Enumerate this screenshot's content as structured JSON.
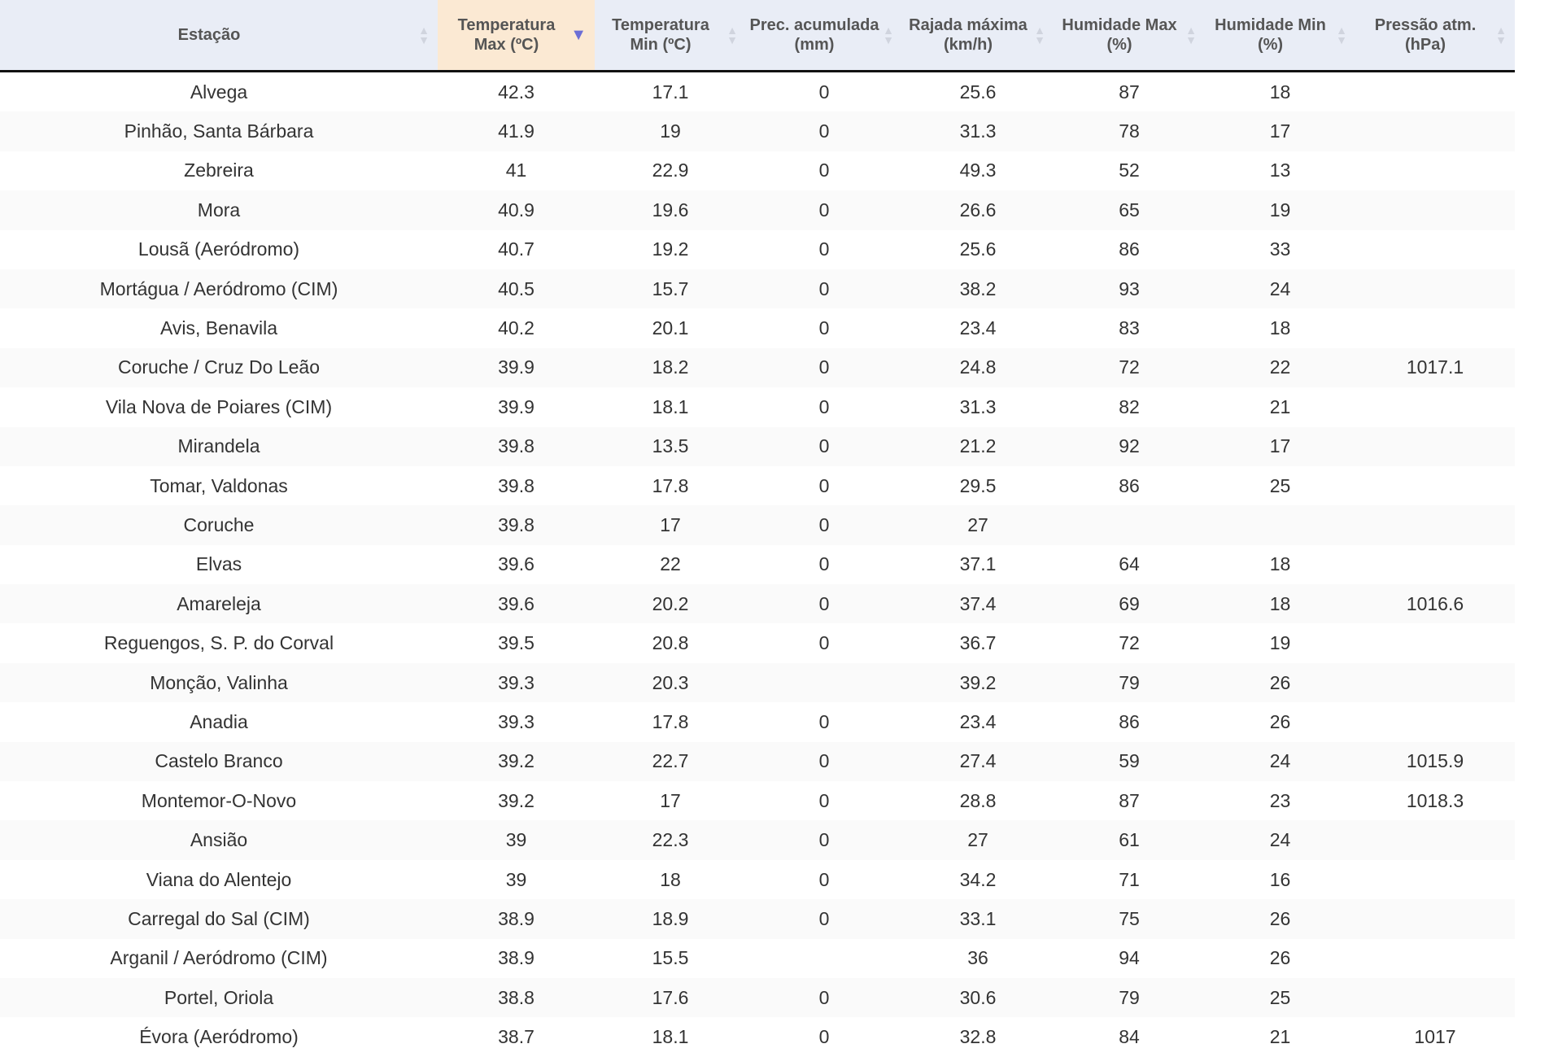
{
  "colors": {
    "header_bg": "#e9edf6",
    "sorted_header_bg": "#fbe9d3",
    "sort_active": "#6b6ed6"
  },
  "columns": [
    {
      "label": "Estação",
      "sorted": false
    },
    {
      "label": "Temperatura Max (ºC)",
      "sorted": true,
      "sort_direction": "descending"
    },
    {
      "label": "Temperatura Min (ºC)",
      "sorted": false
    },
    {
      "label": "Prec. acumulada (mm)",
      "sorted": false
    },
    {
      "label": "Rajada máxima (km/h)",
      "sorted": false
    },
    {
      "label": "Humidade Max (%)",
      "sorted": false
    },
    {
      "label": "Humidade Min (%)",
      "sorted": false
    },
    {
      "label": "Pressão atm. (hPa)",
      "sorted": false
    }
  ],
  "rows": [
    [
      "Alvega",
      "42.3",
      "17.1",
      "0",
      "25.6",
      "87",
      "18",
      ""
    ],
    [
      "Pinhão, Santa Bárbara",
      "41.9",
      "19",
      "0",
      "31.3",
      "78",
      "17",
      ""
    ],
    [
      "Zebreira",
      "41",
      "22.9",
      "0",
      "49.3",
      "52",
      "13",
      ""
    ],
    [
      "Mora",
      "40.9",
      "19.6",
      "0",
      "26.6",
      "65",
      "19",
      ""
    ],
    [
      "Lousã (Aeródromo)",
      "40.7",
      "19.2",
      "0",
      "25.6",
      "86",
      "33",
      ""
    ],
    [
      "Mortágua / Aeródromo (CIM)",
      "40.5",
      "15.7",
      "0",
      "38.2",
      "93",
      "24",
      ""
    ],
    [
      "Avis, Benavila",
      "40.2",
      "20.1",
      "0",
      "23.4",
      "83",
      "18",
      ""
    ],
    [
      "Coruche / Cruz Do Leão",
      "39.9",
      "18.2",
      "0",
      "24.8",
      "72",
      "22",
      "1017.1"
    ],
    [
      "Vila Nova de Poiares (CIM)",
      "39.9",
      "18.1",
      "0",
      "31.3",
      "82",
      "21",
      ""
    ],
    [
      "Mirandela",
      "39.8",
      "13.5",
      "0",
      "21.2",
      "92",
      "17",
      ""
    ],
    [
      "Tomar, Valdonas",
      "39.8",
      "17.8",
      "0",
      "29.5",
      "86",
      "25",
      ""
    ],
    [
      "Coruche",
      "39.8",
      "17",
      "0",
      "27",
      "",
      "",
      ""
    ],
    [
      "Elvas",
      "39.6",
      "22",
      "0",
      "37.1",
      "64",
      "18",
      ""
    ],
    [
      "Amareleja",
      "39.6",
      "20.2",
      "0",
      "37.4",
      "69",
      "18",
      "1016.6"
    ],
    [
      "Reguengos, S. P. do Corval",
      "39.5",
      "20.8",
      "0",
      "36.7",
      "72",
      "19",
      ""
    ],
    [
      "Monção, Valinha",
      "39.3",
      "20.3",
      "",
      "39.2",
      "79",
      "26",
      ""
    ],
    [
      "Anadia",
      "39.3",
      "17.8",
      "0",
      "23.4",
      "86",
      "26",
      ""
    ],
    [
      "Castelo Branco",
      "39.2",
      "22.7",
      "0",
      "27.4",
      "59",
      "24",
      "1015.9"
    ],
    [
      "Montemor-O-Novo",
      "39.2",
      "17",
      "0",
      "28.8",
      "87",
      "23",
      "1018.3"
    ],
    [
      "Ansião",
      "39",
      "22.3",
      "0",
      "27",
      "61",
      "24",
      ""
    ],
    [
      "Viana do Alentejo",
      "39",
      "18",
      "0",
      "34.2",
      "71",
      "16",
      ""
    ],
    [
      "Carregal do Sal (CIM)",
      "38.9",
      "18.9",
      "0",
      "33.1",
      "75",
      "26",
      ""
    ],
    [
      "Arganil / Aeródromo (CIM)",
      "38.9",
      "15.5",
      "",
      "36",
      "94",
      "26",
      ""
    ],
    [
      "Portel, Oriola",
      "38.8",
      "17.6",
      "0",
      "30.6",
      "79",
      "25",
      ""
    ],
    [
      "Évora (Aeródromo)",
      "38.7",
      "18.1",
      "0",
      "32.8",
      "84",
      "21",
      "1017"
    ]
  ]
}
